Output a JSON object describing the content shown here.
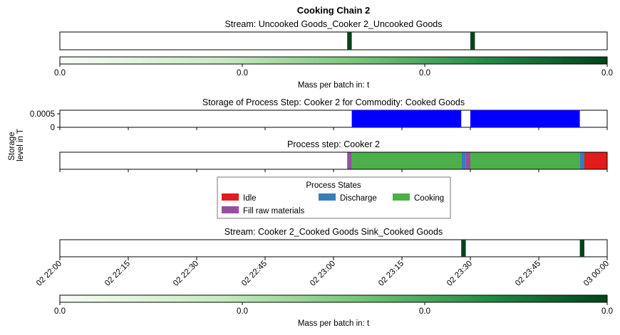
{
  "figure_title": "Cooking Chain 2",
  "colors": {
    "stream_bar": "#00441b",
    "storage_fill": "#0000ff",
    "idle": "#e41a1c",
    "discharge": "#377eb8",
    "cooking": "#4daf4a",
    "fill_raw": "#984ea3",
    "frame": "#000000",
    "colorbar_start": "#f7fcf5",
    "colorbar_end": "#00441b"
  },
  "time_axis": {
    "start": "02 22:00",
    "end": "03 00:00",
    "tick_labels": [
      "02 22:00",
      "02 22:15",
      "02 22:30",
      "02 22:45",
      "02 23:00",
      "02 23:15",
      "02 23:30",
      "02 23:45",
      "03 00:00"
    ]
  },
  "chart_data": [
    {
      "type": "bar",
      "subtype": "event-strip",
      "title": "Stream: Uncooked Goods_Cooker 2_Uncooked Goods",
      "events": [
        {
          "start": "02 23:03",
          "end": "02 23:04"
        },
        {
          "start": "02 23:30",
          "end": "02 23:31"
        }
      ],
      "colorbar": {
        "label": "Mass per batch in: t",
        "tick_labels": [
          "0.0",
          "0.0",
          "0.0",
          "0.0"
        ]
      }
    },
    {
      "type": "area",
      "title": "Storage of Process Step: Cooker 2 for Commodity: Cooked Goods",
      "ylabel": "Storage\nlevel in T",
      "y_tick_labels": [
        "0.0005",
        "0"
      ],
      "ylim": [
        0,
        0.0006
      ],
      "blocks": [
        {
          "start": "02 23:04",
          "end": "02 23:28",
          "level": 0.0006
        },
        {
          "start": "02 23:30",
          "end": "02 23:54",
          "level": 0.0006
        }
      ]
    },
    {
      "type": "bar",
      "subtype": "state-timeline",
      "title": "Process step: Cooker 2",
      "segments": [
        {
          "state": "Fill raw materials",
          "start": "02 23:03",
          "end": "02 23:04"
        },
        {
          "state": "Cooking",
          "start": "02 23:04",
          "end": "02 23:28"
        },
        {
          "state": "Discharge",
          "start": "02 23:28",
          "end": "02 23:29"
        },
        {
          "state": "Fill raw materials",
          "start": "02 23:29",
          "end": "02 23:30"
        },
        {
          "state": "Cooking",
          "start": "02 23:30",
          "end": "02 23:54"
        },
        {
          "state": "Discharge",
          "start": "02 23:54",
          "end": "02 23:55"
        },
        {
          "state": "Idle",
          "start": "02 23:55",
          "end": "03 00:00"
        }
      ],
      "legend": {
        "title": "Process States",
        "placement": "center",
        "items": [
          {
            "label": "Idle",
            "color": "#e41a1c"
          },
          {
            "label": "Discharge",
            "color": "#377eb8"
          },
          {
            "label": "Cooking",
            "color": "#4daf4a"
          },
          {
            "label": "Fill raw materials",
            "color": "#984ea3"
          }
        ]
      }
    },
    {
      "type": "bar",
      "subtype": "event-strip",
      "title": "Stream: Cooker 2_Cooked Goods Sink_Cooked Goods",
      "events": [
        {
          "start": "02 23:28",
          "end": "02 23:29"
        },
        {
          "start": "02 23:54",
          "end": "02 23:55"
        }
      ],
      "colorbar": {
        "label": "Mass per batch in: t",
        "tick_labels": [
          "0.0",
          "0.0",
          "0.0",
          "0.0"
        ]
      }
    }
  ]
}
